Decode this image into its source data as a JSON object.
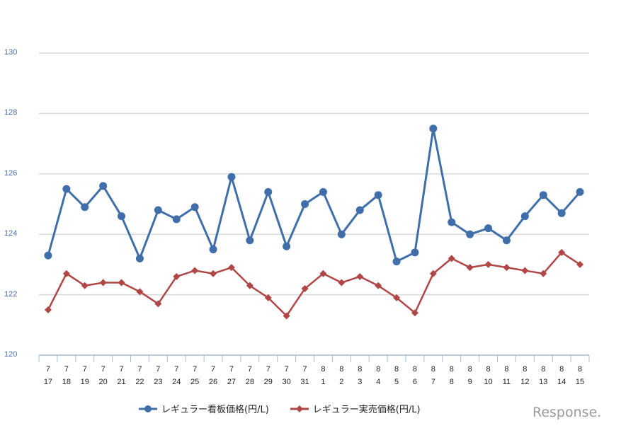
{
  "chart_data": {
    "type": "line",
    "title": "",
    "xlabel": "",
    "ylabel": "",
    "ylim": [
      120,
      130
    ],
    "yticks": [
      "120",
      "122",
      "124",
      "126",
      "128",
      "130"
    ],
    "grid": true,
    "legend_position": "bottom",
    "categories": [
      [
        "7",
        "17"
      ],
      [
        "7",
        "18"
      ],
      [
        "7",
        "19"
      ],
      [
        "7",
        "20"
      ],
      [
        "7",
        "21"
      ],
      [
        "7",
        "22"
      ],
      [
        "7",
        "23"
      ],
      [
        "7",
        "24"
      ],
      [
        "7",
        "25"
      ],
      [
        "7",
        "26"
      ],
      [
        "7",
        "27"
      ],
      [
        "7",
        "28"
      ],
      [
        "7",
        "29"
      ],
      [
        "7",
        "30"
      ],
      [
        "7",
        "31"
      ],
      [
        "8",
        "1"
      ],
      [
        "8",
        "2"
      ],
      [
        "8",
        "3"
      ],
      [
        "8",
        "4"
      ],
      [
        "8",
        "5"
      ],
      [
        "8",
        "6"
      ],
      [
        "8",
        "7"
      ],
      [
        "8",
        "8"
      ],
      [
        "8",
        "9"
      ],
      [
        "8",
        "10"
      ],
      [
        "8",
        "11"
      ],
      [
        "8",
        "12"
      ],
      [
        "8",
        "13"
      ],
      [
        "8",
        "14"
      ],
      [
        "8",
        "15"
      ]
    ],
    "series": [
      {
        "name": "レギュラー看板価格(円/L)",
        "color": "#3f6eaa",
        "marker": "circle",
        "values": [
          123.3,
          125.5,
          124.9,
          125.6,
          124.6,
          123.2,
          124.8,
          124.5,
          124.9,
          123.5,
          125.9,
          123.8,
          125.4,
          123.6,
          125.0,
          125.4,
          124.0,
          124.8,
          125.3,
          123.1,
          123.4,
          127.5,
          124.4,
          124.0,
          124.2,
          123.8,
          124.6,
          125.3,
          124.7,
          125.4
        ]
      },
      {
        "name": "レギュラー実売価格(円/L)",
        "color": "#b04645",
        "marker": "diamond",
        "values": [
          121.5,
          122.7,
          122.3,
          122.4,
          122.4,
          122.1,
          121.7,
          122.6,
          122.8,
          122.7,
          122.9,
          122.3,
          121.9,
          121.3,
          122.2,
          122.7,
          122.4,
          122.6,
          122.3,
          121.9,
          121.4,
          122.7,
          123.2,
          122.9,
          123.0,
          122.9,
          122.8,
          122.7,
          123.4,
          123.0
        ]
      }
    ]
  },
  "legend": {
    "items": [
      {
        "label": "レギュラー看板価格(円/L)",
        "color": "#3f6eaa"
      },
      {
        "label": "レギュラー実売価格(円/L)",
        "color": "#b04645"
      }
    ]
  },
  "watermark": {
    "text": "Response."
  },
  "colors": {
    "grid": "#d9d9d9",
    "axis": "#a9bcd6",
    "tick_label": "#4a6fa5"
  }
}
